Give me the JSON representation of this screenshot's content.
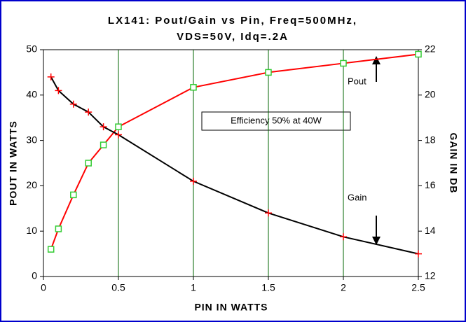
{
  "chart_data": {
    "type": "line",
    "title": [
      "LX141: Pout/Gain vs Pin, Freq=500MHz,",
      "VDS=50V, Idq=.2A"
    ],
    "x_label": "PIN IN WATTS",
    "y_label": "POUT IN WATTS",
    "y2_label": "GAIN IN DB",
    "x": [
      0.05,
      0.1,
      0.2,
      0.3,
      0.4,
      0.5,
      1,
      1.5,
      2,
      2.5
    ],
    "series": [
      {
        "name": "Pout",
        "color": "#ff0000",
        "marker_color": "#33cc33",
        "values": [
          6,
          10.5,
          18,
          25,
          29,
          33,
          41.7,
          45,
          47,
          49
        ]
      },
      {
        "name": "Gain",
        "color": "#000000",
        "marker_color": "#ff0000",
        "axis": "y2",
        "values": [
          20.8,
          20.2,
          19.6,
          19.25,
          18.6,
          18.25,
          16.2,
          14.8,
          13.75,
          13.0
        ]
      }
    ],
    "annotations": [
      "Efficiency 50% at 40W"
    ],
    "xlim": [
      0,
      2.5
    ],
    "xticks": [
      0,
      0.5,
      1,
      1.5,
      2,
      2.5
    ],
    "ylim": [
      0,
      50
    ],
    "yticks": [
      0,
      10,
      20,
      30,
      40,
      50
    ],
    "y2lim": [
      12,
      22
    ],
    "y2ticks": [
      12,
      14,
      16,
      18,
      20,
      22
    ],
    "grid": "x",
    "grid_color": "#006600"
  }
}
